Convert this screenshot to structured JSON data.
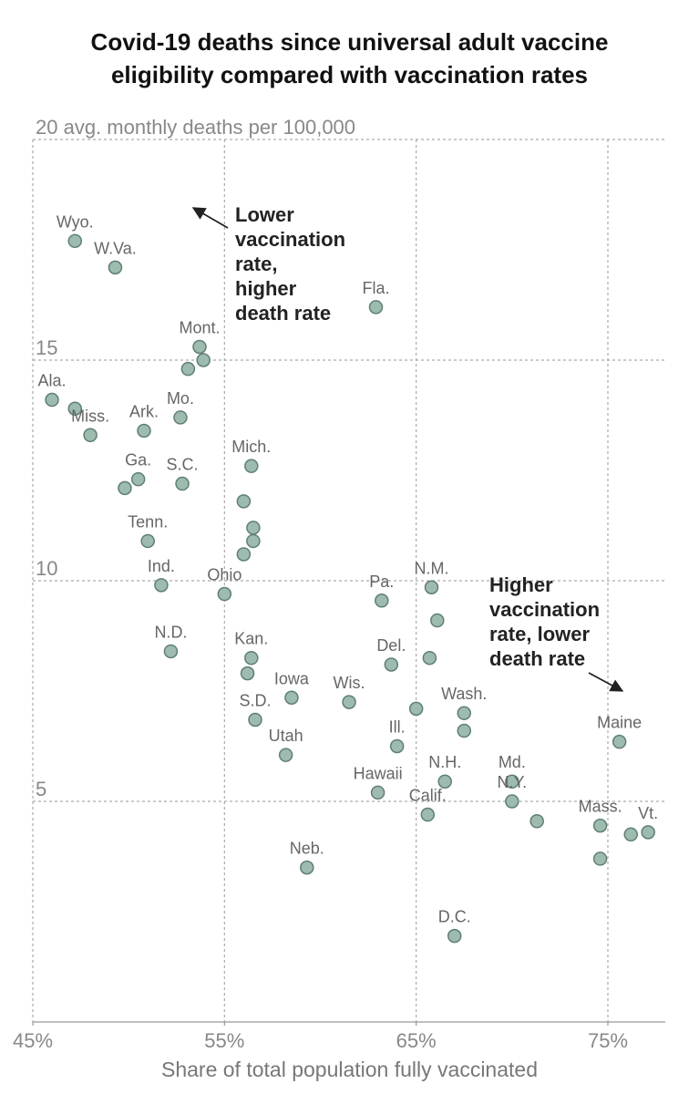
{
  "title_lines": [
    "Covid-19 deaths since universal adult vaccine",
    "eligibility compared with vaccination rates"
  ],
  "colors": {
    "point_fill": "#9dbbae",
    "point_stroke": "#5f7f73",
    "grid": "#aaaaaa",
    "label": "#666666",
    "axis_text": "#888888"
  },
  "annotations": {
    "top_left": [
      "Lower",
      "vaccination",
      "rate,",
      "higher",
      "death rate"
    ],
    "bottom_right": [
      "Higher",
      "vaccination",
      "rate, lower",
      "death rate"
    ]
  },
  "chart_data": {
    "type": "scatter",
    "title": "Covid-19 deaths since universal adult vaccine eligibility compared with vaccination rates",
    "xlabel": "Share of total population fully vaccinated",
    "ylabel": "avg. monthly deaths per 100,000",
    "xlim": [
      45,
      78.5
    ],
    "ylim": [
      0,
      20
    ],
    "x_ticks": [
      45,
      55,
      65,
      75
    ],
    "x_tick_labels": [
      "45%",
      "55%",
      "65%",
      "75%"
    ],
    "y_ticks": [
      5,
      10,
      15,
      20
    ],
    "y_tick_labels": [
      "5",
      "10",
      "15",
      "20"
    ],
    "y_top_tick_label": "20 avg. monthly deaths per 100,000",
    "grid": true,
    "points": [
      {
        "label": "Wyo.",
        "x": 47.2,
        "y": 17.7
      },
      {
        "label": "W.Va.",
        "x": 49.3,
        "y": 17.1
      },
      {
        "label": "Fla.",
        "x": 62.9,
        "y": 16.2
      },
      {
        "label": "Mont.",
        "x": 53.7,
        "y": 15.3
      },
      {
        "label": "",
        "x": 53.9,
        "y": 15.0
      },
      {
        "label": "",
        "x": 53.1,
        "y": 14.8
      },
      {
        "label": "Ala.",
        "x": 46.0,
        "y": 14.1
      },
      {
        "label": "",
        "x": 47.2,
        "y": 13.9
      },
      {
        "label": "Mo.",
        "x": 52.7,
        "y": 13.7
      },
      {
        "label": "Ark.",
        "x": 50.8,
        "y": 13.4
      },
      {
        "label": "Miss.",
        "x": 48.0,
        "y": 13.3
      },
      {
        "label": "Mich.",
        "x": 56.4,
        "y": 12.6
      },
      {
        "label": "Ga.",
        "x": 50.5,
        "y": 12.3
      },
      {
        "label": "",
        "x": 49.8,
        "y": 12.1
      },
      {
        "label": "S.C.",
        "x": 52.8,
        "y": 12.2
      },
      {
        "label": "",
        "x": 56.0,
        "y": 11.8
      },
      {
        "label": "",
        "x": 56.5,
        "y": 11.2
      },
      {
        "label": "",
        "x": 56.5,
        "y": 10.9
      },
      {
        "label": "",
        "x": 56.0,
        "y": 10.6
      },
      {
        "label": "Tenn.",
        "x": 51.0,
        "y": 10.9
      },
      {
        "label": "Ind.",
        "x": 51.7,
        "y": 9.9
      },
      {
        "label": "Ohio",
        "x": 55.0,
        "y": 9.7
      },
      {
        "label": "N.M.",
        "x": 65.8,
        "y": 9.85
      },
      {
        "label": "Pa.",
        "x": 63.2,
        "y": 9.55
      },
      {
        "label": "",
        "x": 66.1,
        "y": 9.1
      },
      {
        "label": "N.D.",
        "x": 52.2,
        "y": 8.4
      },
      {
        "label": "Kan.",
        "x": 56.4,
        "y": 8.25
      },
      {
        "label": "",
        "x": 65.7,
        "y": 8.25
      },
      {
        "label": "Del.",
        "x": 63.7,
        "y": 8.1
      },
      {
        "label": "",
        "x": 56.2,
        "y": 7.9
      },
      {
        "label": "Iowa",
        "x": 58.5,
        "y": 7.35
      },
      {
        "label": "Wis.",
        "x": 61.5,
        "y": 7.25
      },
      {
        "label": "",
        "x": 65.0,
        "y": 7.1
      },
      {
        "label": "Wash.",
        "x": 67.5,
        "y": 7.0
      },
      {
        "label": "",
        "x": 67.5,
        "y": 6.6
      },
      {
        "label": "S.D.",
        "x": 56.6,
        "y": 6.85
      },
      {
        "label": "Maine",
        "x": 75.6,
        "y": 6.35
      },
      {
        "label": "Ill.",
        "x": 64.0,
        "y": 6.25
      },
      {
        "label": "Utah",
        "x": 58.2,
        "y": 6.05
      },
      {
        "label": "N.H.",
        "x": 66.5,
        "y": 5.45
      },
      {
        "label": "Md.",
        "x": 70.0,
        "y": 5.45
      },
      {
        "label": "Hawaii",
        "x": 63.0,
        "y": 5.2
      },
      {
        "label": "N.Y.",
        "x": 70.0,
        "y": 5.0
      },
      {
        "label": "Calif.",
        "x": 65.6,
        "y": 4.7
      },
      {
        "label": "",
        "x": 71.3,
        "y": 4.55
      },
      {
        "label": "Mass.",
        "x": 74.6,
        "y": 4.45
      },
      {
        "label": "Vt.",
        "x": 77.1,
        "y": 4.3
      },
      {
        "label": "",
        "x": 76.2,
        "y": 4.25
      },
      {
        "label": "",
        "x": 74.6,
        "y": 3.7
      },
      {
        "label": "Neb.",
        "x": 59.3,
        "y": 3.5
      },
      {
        "label": "D.C.",
        "x": 67.0,
        "y": 1.95
      }
    ]
  }
}
